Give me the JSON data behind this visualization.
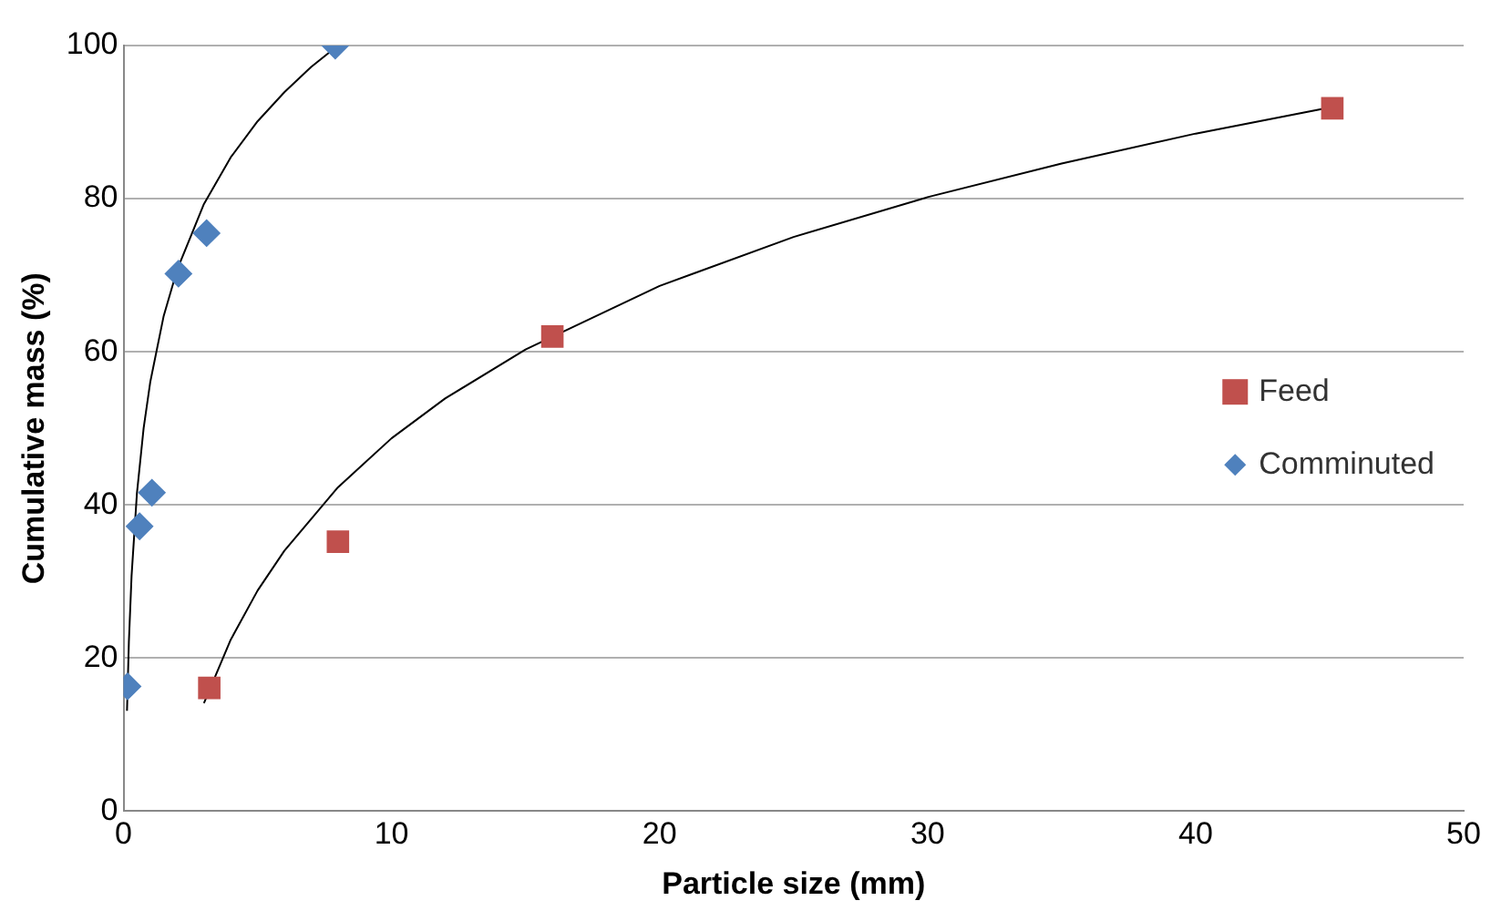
{
  "chart_data": {
    "type": "scatter",
    "xlabel": "Particle size (mm)",
    "ylabel": "Cumulative mass (%)",
    "xlim": [
      0,
      50
    ],
    "xticks": [
      0,
      10,
      20,
      30,
      40,
      50
    ],
    "ylim": [
      0,
      100
    ],
    "yticks": [
      0,
      20,
      40,
      60,
      80,
      100
    ],
    "grid": "y",
    "legend": "right",
    "series": [
      {
        "name": "Feed",
        "color": "#c0504d",
        "marker": "square",
        "x": [
          3.2,
          8.0,
          16.0,
          45.1
        ],
        "values": [
          16.1,
          35.2,
          62.0,
          91.8
        ]
      },
      {
        "name": "Comminuted",
        "color": "#4f81bd",
        "marker": "diamond",
        "x": [
          0.15,
          0.6,
          1.06,
          2.05,
          3.1,
          7.9
        ],
        "values": [
          16.3,
          37.2,
          41.6,
          70.2,
          75.5,
          100
        ]
      },
      {
        "type": "line",
        "color": "#000000",
        "marker": "none",
        "x": [
          3,
          4,
          5,
          6,
          8,
          10,
          12,
          15,
          20,
          25,
          30,
          35,
          40,
          45
        ],
        "values": [
          14.1,
          22.4,
          28.8,
          34.0,
          42.3,
          48.7,
          53.9,
          60.3,
          68.6,
          75.0,
          80.2,
          84.6,
          88.5,
          91.9
        ]
      },
      {
        "type": "line",
        "color": "#000000",
        "marker": "none",
        "x": [
          0.13,
          0.2,
          0.3,
          0.5,
          0.75,
          1,
          1.5,
          2,
          3,
          4,
          5,
          6,
          7,
          8
        ],
        "values": [
          13.1,
          22.1,
          30.7,
          41.5,
          50.0,
          56.1,
          64.7,
          70.7,
          79.3,
          85.4,
          90.1,
          93.9,
          97.2,
          100.0
        ]
      }
    ]
  }
}
